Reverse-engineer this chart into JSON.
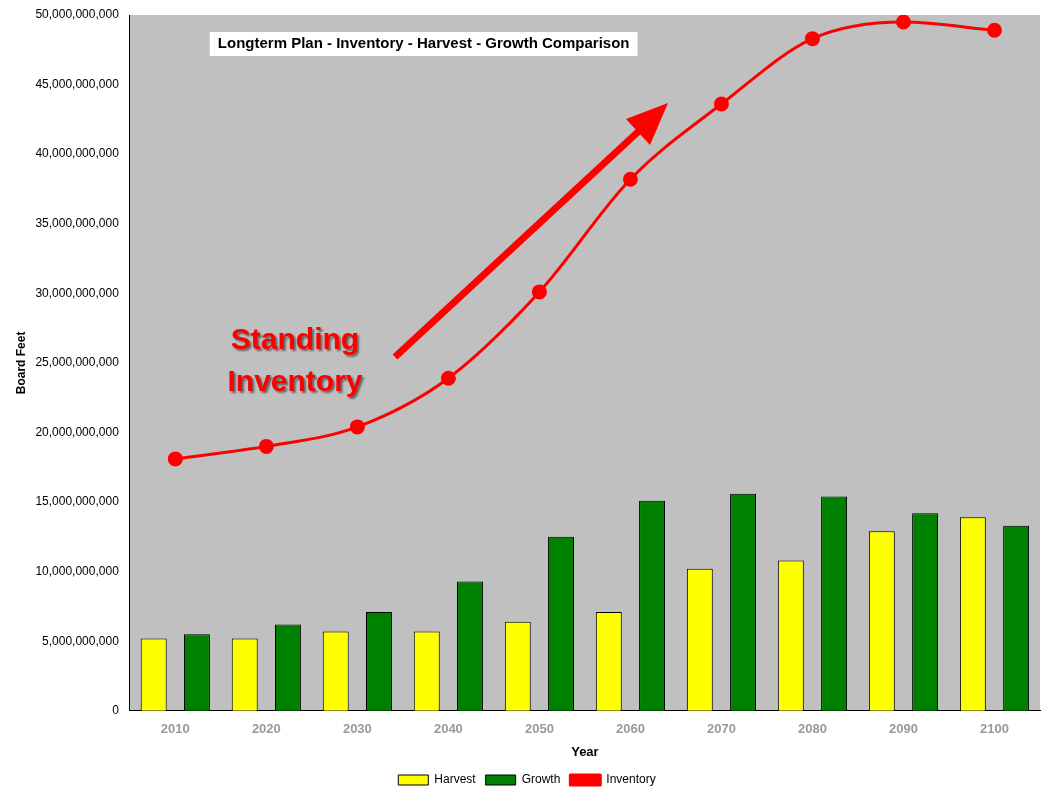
{
  "chart_data": {
    "type": "bar",
    "title": "Longterm Plan - Inventory - Harvest - Growth Comparison",
    "xlabel": "Year",
    "ylabel": "Board Feet",
    "categories": [
      "2010",
      "2020",
      "2030",
      "2040",
      "2050",
      "2060",
      "2070",
      "2080",
      "2090",
      "2100"
    ],
    "series": [
      {
        "name": "Harvest",
        "color": "#ffff00",
        "values": [
          5200000000.0,
          5200000000.0,
          5700000000.0,
          5700000000.0,
          6400000000.0,
          7100000000.0,
          10200000000.0,
          10800000000.0,
          12900000000.0,
          13900000000.0
        ]
      },
      {
        "name": "Growth",
        "color": "#008000",
        "values": [
          5500000000.0,
          6200000000.0,
          7100000000.0,
          9300000000.0,
          12500000000.0,
          15100000000.0,
          15600000000.0,
          15400000000.0,
          14200000000.0,
          13300000000.0
        ]
      },
      {
        "name": "Inventory",
        "type": "line",
        "color": "#ff0000",
        "values": [
          18100000000.0,
          19000000000.0,
          20400000000.0,
          23900000000.0,
          30100000000.0,
          38200000000.0,
          43600000000.0,
          48300000000.0,
          49500000000.0,
          48900000000.0
        ]
      }
    ],
    "ylim": [
      0,
      50000000000
    ],
    "yticks": [
      0,
      {
        "value": 5000000000,
        "label": "5,000,000,000"
      },
      {
        "value": 10000000000,
        "label": "10,000,000,000"
      },
      {
        "value": 15000000000,
        "label": "15,000,000,000"
      },
      {
        "value": 20000000000,
        "label": "20,000,000,000"
      },
      {
        "value": 25000000000,
        "label": "25,000,000,000"
      },
      {
        "value": 30000000000,
        "label": "30,000,000,000"
      },
      {
        "value": 35000000000,
        "label": "35,000,000,000"
      },
      {
        "value": 40000000000,
        "label": "40,000,000,000"
      },
      {
        "value": 45000000000,
        "label": "45,000,000,000"
      },
      {
        "value": 50000000000,
        "label": "50,000,000,000"
      }
    ],
    "grid": false,
    "legend": "bottom",
    "marker": "circle",
    "line_style": "solid",
    "annotations": [
      "Standing Inventory"
    ]
  }
}
